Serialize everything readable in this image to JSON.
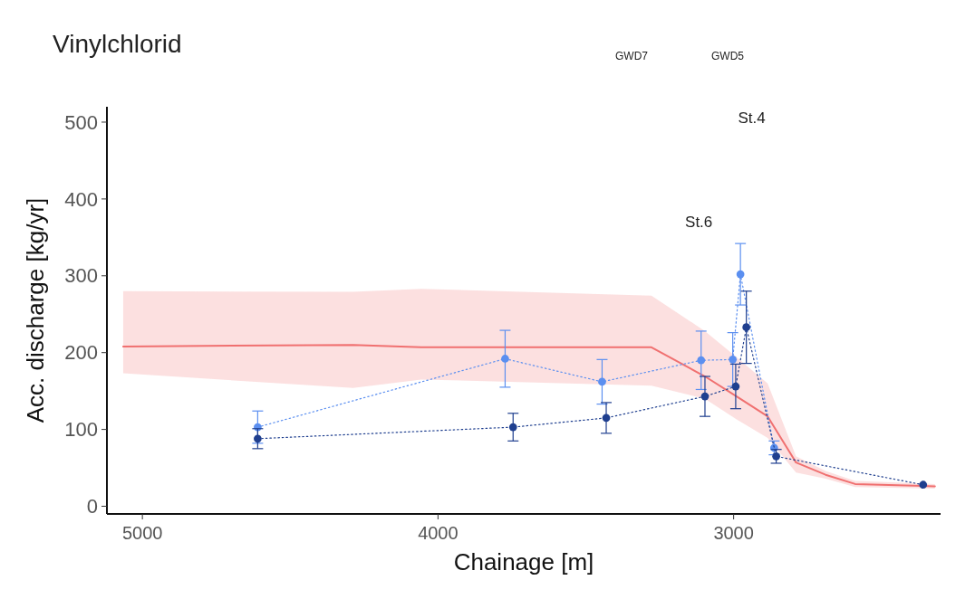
{
  "chart_data": {
    "type": "line",
    "title": "Vinylchlorid",
    "xlabel": "Chainage [m]",
    "ylabel": "Acc. discharge [kg/yr]",
    "xlim": [
      5120,
      2300
    ],
    "xticks": [
      5000,
      4000,
      3000
    ],
    "ylim": [
      -10,
      520
    ],
    "yticks": [
      0,
      100,
      200,
      300,
      400,
      500
    ],
    "grid": false,
    "series": [
      {
        "color": "#f07070",
        "line_style": "solid",
        "marker": "none",
        "x": [
          5065,
          4287,
          4057,
          3278,
          3097,
          2990,
          2885,
          2789,
          2689,
          2589,
          2319
        ],
        "values": [
          208,
          210,
          207,
          207,
          169,
          143,
          117,
          57,
          41,
          29,
          26
        ],
        "lower": [
          173,
          154,
          165,
          157,
          140,
          113,
          89,
          44,
          36,
          25,
          23
        ],
        "upper": [
          280,
          279,
          283,
          274,
          228,
          194,
          160,
          65,
          46,
          33,
          29
        ]
      },
      {
        "color": "#5b8ff0",
        "line_style": "dotted",
        "marker": "circle",
        "x": [
          4610,
          3773,
          3445,
          3110,
          3003,
          2977,
          2863
        ],
        "values": [
          103,
          192,
          162,
          190,
          191,
          302,
          76
        ],
        "errors": [
          21,
          37,
          29,
          38,
          35,
          40,
          9
        ]
      },
      {
        "color": "#1f3f8f",
        "line_style": "dotted",
        "marker": "circle",
        "x": [
          4610,
          3746,
          3431,
          3097,
          2993,
          2957,
          2856,
          2359
        ],
        "values": [
          88,
          103,
          115,
          143,
          156,
          233,
          65,
          28
        ],
        "errors": [
          13,
          18,
          20,
          26,
          29,
          47,
          9,
          null
        ]
      }
    ],
    "annotations": [
      "GWD7",
      "GWD5",
      "St.4",
      "St.6"
    ]
  }
}
